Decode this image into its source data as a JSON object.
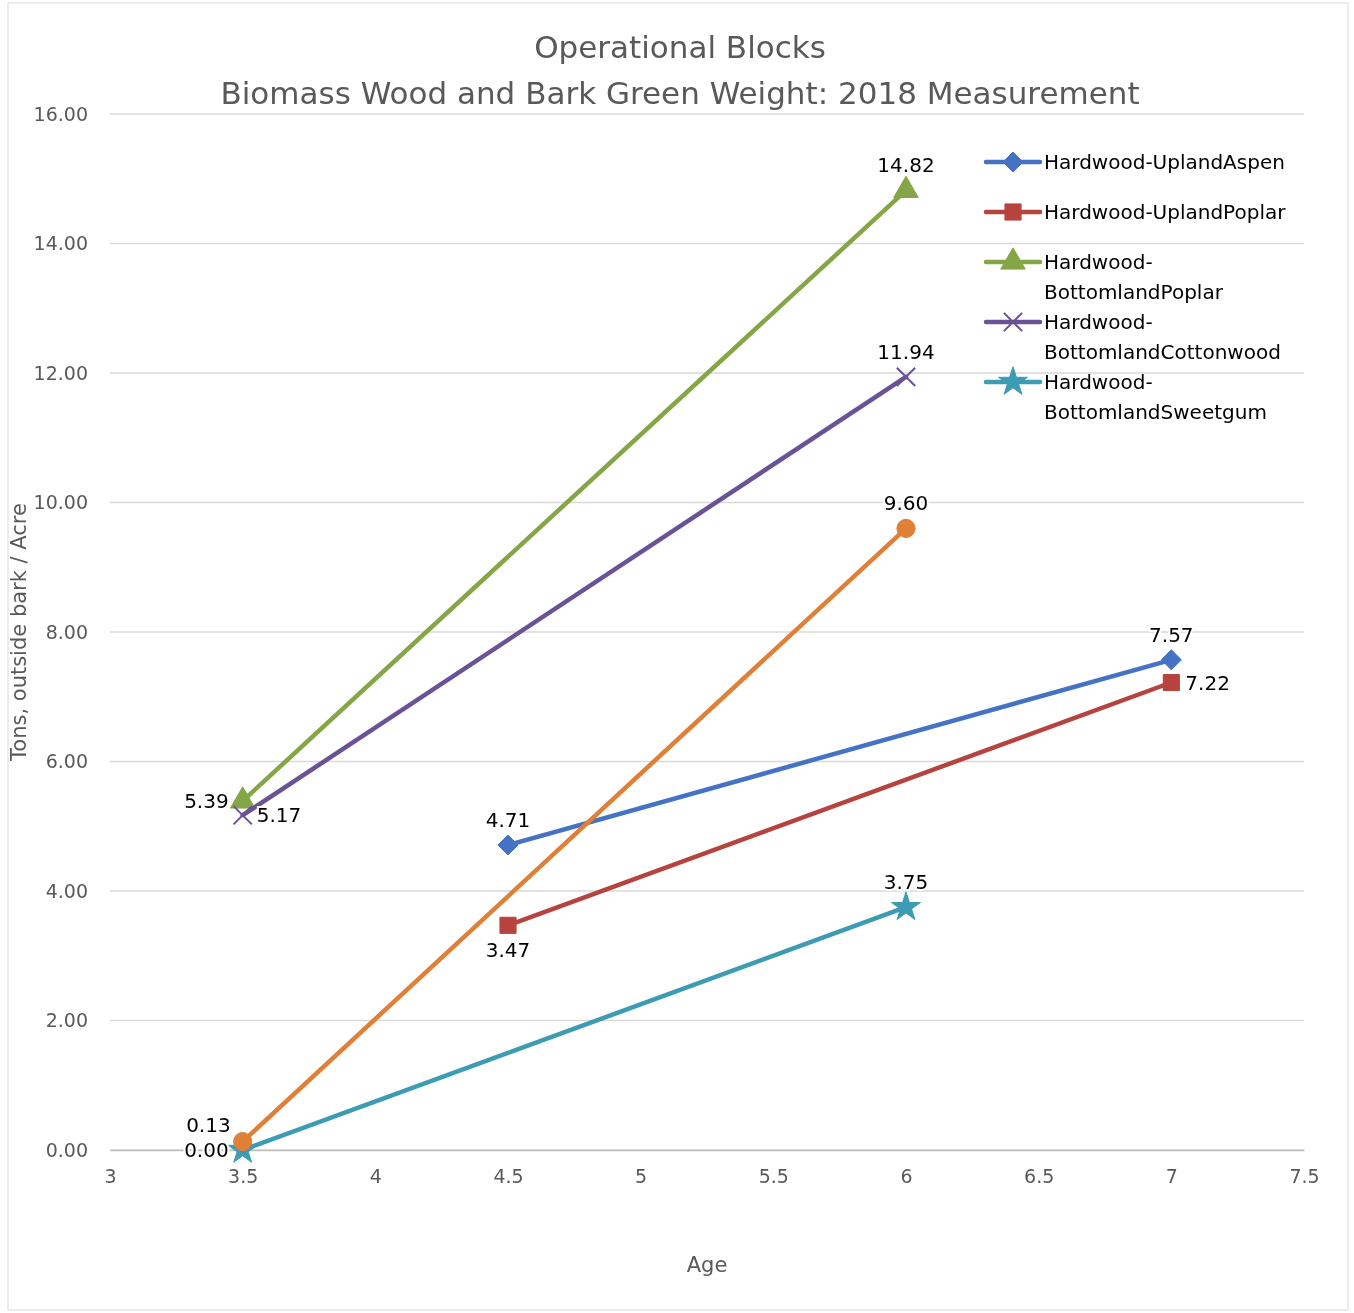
{
  "chart_data": {
    "type": "line",
    "title": "Operational Blocks",
    "subtitle": "Biomass Wood and Bark Green Weight: 2018 Measurement",
    "xlabel": "Age",
    "ylabel": "Tons, outside bark / Acre",
    "xlim": [
      3,
      7.5
    ],
    "xticks": [
      3,
      3.5,
      4,
      4.5,
      5,
      5.5,
      6,
      6.5,
      7,
      7.5
    ],
    "ylim": [
      0,
      16
    ],
    "yticks": [
      {
        "value": 0,
        "label": "0.00"
      },
      {
        "value": 2,
        "label": "2.00"
      },
      {
        "value": 4,
        "label": "4.00"
      },
      {
        "value": 6,
        "label": "6.00"
      },
      {
        "value": 8,
        "label": "8.00"
      },
      {
        "value": 10,
        "label": "10.00"
      },
      {
        "value": 12,
        "label": "12.00"
      },
      {
        "value": 14,
        "label": "14.00"
      },
      {
        "value": 16,
        "label": "16.00"
      }
    ],
    "grid": "y",
    "legend": "top right",
    "line_style": "solid",
    "series": [
      {
        "name": "Hardwood-UplandAspen",
        "color": "#4472c4",
        "marker": "diamond",
        "x": [
          4.5,
          7
        ],
        "values": [
          4.71,
          7.57
        ],
        "value_labels": [
          "4.71",
          "7.57"
        ]
      },
      {
        "name": "Hardwood-UplandPoplar",
        "color": "#b7433f",
        "marker": "square",
        "x": [
          4.5,
          7
        ],
        "values": [
          3.47,
          7.22
        ],
        "value_labels": [
          "3.47",
          "7.22"
        ]
      },
      {
        "name": "Hardwood-BottomlandPoplar",
        "color": "#84a646",
        "marker": "triangle",
        "x": [
          3.5,
          6
        ],
        "values": [
          5.39,
          14.82
        ],
        "value_labels": [
          "5.39",
          "14.82"
        ]
      },
      {
        "name": "Hardwood-BottomlandCottonwood",
        "color": "#6b5196",
        "marker": "cross",
        "x": [
          3.5,
          6
        ],
        "values": [
          5.17,
          11.94
        ],
        "value_labels": [
          "5.17",
          "11.94"
        ]
      },
      {
        "name": "Hardwood-BottomlandSweetgum",
        "color": "#3d9bb3",
        "marker": "star",
        "x": [
          3.5,
          6
        ],
        "values": [
          0.0,
          3.75
        ],
        "value_labels": [
          "0.00",
          "3.75"
        ]
      },
      {
        "color": "#e07f36",
        "marker": "circle",
        "x": [
          3.5,
          6
        ],
        "values": [
          0.13,
          9.6
        ],
        "value_labels": [
          "0.13",
          "9.60"
        ]
      }
    ]
  }
}
